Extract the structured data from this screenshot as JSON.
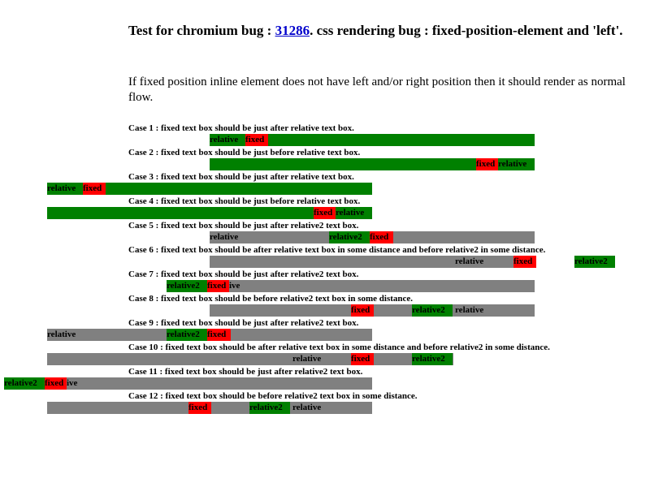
{
  "header": {
    "title_before": "Test for chromium bug : ",
    "link": "31286",
    "title_after": ". css rendering bug : fixed-position-element and 'left'.",
    "description": "If fixed position inline element does not have left and/or right position then it should render as normal flow."
  },
  "cases": [
    {
      "label": "Case 1 : fixed text box should be just after relative text box.",
      "boxes": [
        "relative",
        "fixed"
      ]
    },
    {
      "label": "Case 2 : fixed text box should be just before relative text box.",
      "boxes": [
        "fixed",
        "relative"
      ]
    },
    {
      "label": "Case 3 : fixed text box should be just after relative text box.",
      "boxes": [
        "relative",
        "fixed"
      ]
    },
    {
      "label": "Case 4 : fixed text box should be just before relative text box.",
      "boxes": [
        "fixed",
        "relative"
      ]
    },
    {
      "label": "Case 5 : fixed text box should be just after relative2 text box.",
      "boxes": [
        "relative",
        "relative2",
        "fixed"
      ]
    },
    {
      "label": "Case 6 : fixed text box should be after relative text box in some distance and before relative2 in some distance.",
      "boxes": [
        "relative",
        "fixed",
        "relative2"
      ]
    },
    {
      "label": "Case 7 : fixed text box should be just after relative2 text box.",
      "boxes": [
        "relative2",
        "fixed",
        "ive"
      ]
    },
    {
      "label": "Case 8 : fixed text box should be before relative2 text box in some distance.",
      "boxes": [
        "fixed",
        "relative2",
        "relative"
      ]
    },
    {
      "label": "Case 9 : fixed text box should be just after relative2 text box.",
      "boxes": [
        "relative",
        "relative2",
        "fixed"
      ]
    },
    {
      "label": "Case 10 : fixed text box should be after relative text box in some distance and before relative2 in some distance.",
      "boxes": [
        "relative",
        "fixed",
        "relative2"
      ]
    },
    {
      "label": "Case 11 : fixed text box should be just after relative2 text box.",
      "boxes": [
        "relative2",
        "fixed",
        "ive"
      ]
    },
    {
      "label": "Case 12 : fixed text box should be before relative2 text box in some distance.",
      "boxes": [
        "fixed",
        "relative2",
        "relative"
      ]
    }
  ]
}
